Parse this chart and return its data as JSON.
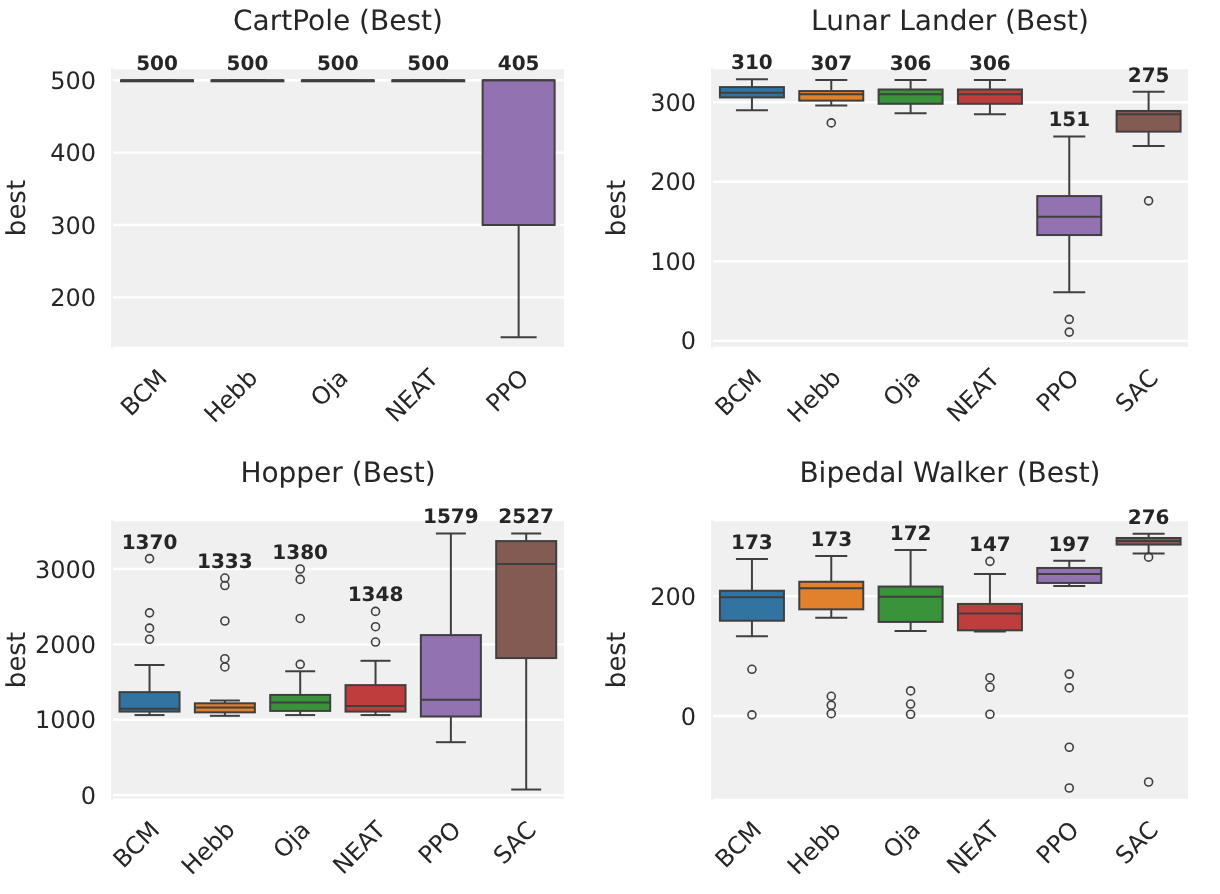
{
  "chart_data": [
    {
      "type": "box",
      "title": "CartPole (Best)",
      "ylabel": "best",
      "categories": [
        "BCM",
        "Hebb",
        "Oja",
        "NEAT",
        "PPO"
      ],
      "colors": [
        "#3274a1",
        "#e1812c",
        "#3a923a",
        "#c03d3e",
        "#9372b2"
      ],
      "ylim": [
        130,
        517
      ],
      "yticks": [
        200,
        300,
        400,
        500
      ],
      "grid": "y",
      "boxes": [
        {
          "low": 500,
          "q1": 500,
          "median": 500,
          "q3": 500,
          "high": 500
        },
        {
          "low": 500,
          "q1": 500,
          "median": 500,
          "q3": 500,
          "high": 500
        },
        {
          "low": 500,
          "q1": 500,
          "median": 500,
          "q3": 500,
          "high": 500
        },
        {
          "low": 500,
          "q1": 500,
          "median": 500,
          "q3": 500,
          "high": 500
        },
        {
          "low": 145,
          "q1": 300,
          "median": 500,
          "q3": 500,
          "high": 500
        }
      ],
      "value_labels": [
        "500",
        "500",
        "500",
        "500",
        "405"
      ]
    },
    {
      "type": "box",
      "title": "Lunar Lander (Best)",
      "ylabel": "best",
      "categories": [
        "BCM",
        "Hebb",
        "Oja",
        "NEAT",
        "PPO",
        "SAC"
      ],
      "colors": [
        "#3274a1",
        "#e1812c",
        "#3a923a",
        "#c03d3e",
        "#9372b2",
        "#845b53"
      ],
      "ylim": [
        -9,
        343
      ],
      "yticks": [
        0,
        100,
        200,
        300
      ],
      "grid": "y",
      "boxes": [
        {
          "low": 290,
          "q1": 306,
          "median": 312,
          "q3": 319,
          "high": 329
        },
        {
          "low": 296,
          "q1": 302,
          "median": 310,
          "q3": 314,
          "high": 328,
          "outliers": [
            274
          ]
        },
        {
          "low": 286,
          "q1": 298,
          "median": 310,
          "q3": 316,
          "high": 328
        },
        {
          "low": 285,
          "q1": 298,
          "median": 310,
          "q3": 316,
          "high": 328
        },
        {
          "low": 61,
          "q1": 133,
          "median": 156,
          "q3": 182,
          "high": 257,
          "outliers": [
            27,
            11
          ]
        },
        {
          "low": 245,
          "q1": 263,
          "median": 285,
          "q3": 289,
          "high": 313,
          "outliers": [
            176
          ]
        }
      ],
      "value_labels": [
        "310",
        "307",
        "306",
        "306",
        "151",
        "275"
      ]
    },
    {
      "type": "box",
      "title": "Hopper (Best)",
      "ylabel": "best",
      "categories": [
        "BCM",
        "Hebb",
        "Oja",
        "NEAT",
        "PPO",
        "SAC"
      ],
      "colors": [
        "#3274a1",
        "#e1812c",
        "#3a923a",
        "#c03d3e",
        "#9372b2",
        "#845b53"
      ],
      "ylim": [
        -65,
        3650
      ],
      "yticks": [
        0,
        1000,
        2000,
        3000
      ],
      "grid": "y",
      "boxes": [
        {
          "low": 1062,
          "q1": 1108,
          "median": 1145,
          "q3": 1366,
          "high": 1726,
          "outliers": [
            3138,
            2418,
            2215,
            2068
          ]
        },
        {
          "low": 1052,
          "q1": 1098,
          "median": 1163,
          "q3": 1218,
          "high": 1255,
          "outliers": [
            2880,
            2780,
            2310,
            1810,
            1700
          ]
        },
        {
          "low": 1062,
          "q1": 1117,
          "median": 1228,
          "q3": 1329,
          "high": 1643,
          "outliers": [
            3000,
            2862,
            2344,
            1735
          ]
        },
        {
          "low": 1062,
          "q1": 1108,
          "median": 1182,
          "q3": 1459,
          "high": 1782,
          "outliers": [
            2437,
            2234,
            2031
          ]
        },
        {
          "low": 702,
          "q1": 1043,
          "median": 1265,
          "q3": 2123,
          "high": 3471
        },
        {
          "low": 74,
          "q1": 1818,
          "median": 3065,
          "q3": 3370,
          "high": 3471
        }
      ],
      "value_labels": [
        "1370",
        "1333",
        "1380",
        "1348",
        "1579",
        "2527"
      ]
    },
    {
      "type": "box",
      "title": "Bipedal Walker (Best)",
      "ylabel": "best",
      "categories": [
        "BCM",
        "Hebb",
        "Oja",
        "NEAT",
        "PPO",
        "SAC"
      ],
      "colors": [
        "#3274a1",
        "#e1812c",
        "#3a923a",
        "#c03d3e",
        "#9372b2",
        "#845b53"
      ],
      "ylim": [
        -140,
        327
      ],
      "yticks": [
        0,
        200
      ],
      "grid": "y",
      "boxes": [
        {
          "low": 133,
          "q1": 159,
          "median": 198,
          "q3": 209,
          "high": 262,
          "outliers": [
            78,
            2
          ]
        },
        {
          "low": 164,
          "q1": 178,
          "median": 213,
          "q3": 224,
          "high": 267,
          "outliers": [
            33,
            18,
            4
          ]
        },
        {
          "low": 142,
          "q1": 157,
          "median": 199,
          "q3": 216,
          "high": 277,
          "outliers": [
            42,
            20,
            3
          ]
        },
        {
          "low": 141,
          "q1": 143,
          "median": 171,
          "q3": 187,
          "high": 237,
          "outliers": [
            258,
            64,
            48,
            3
          ]
        },
        {
          "low": 217,
          "q1": 222,
          "median": 237,
          "q3": 247,
          "high": 259,
          "outliers": [
            70,
            47,
            -52,
            -120
          ]
        },
        {
          "low": 271,
          "q1": 286,
          "median": 292,
          "q3": 297,
          "high": 304,
          "outliers": [
            265,
            -110
          ]
        }
      ],
      "value_labels": [
        "173",
        "173",
        "172",
        "147",
        "197",
        "276"
      ]
    }
  ]
}
